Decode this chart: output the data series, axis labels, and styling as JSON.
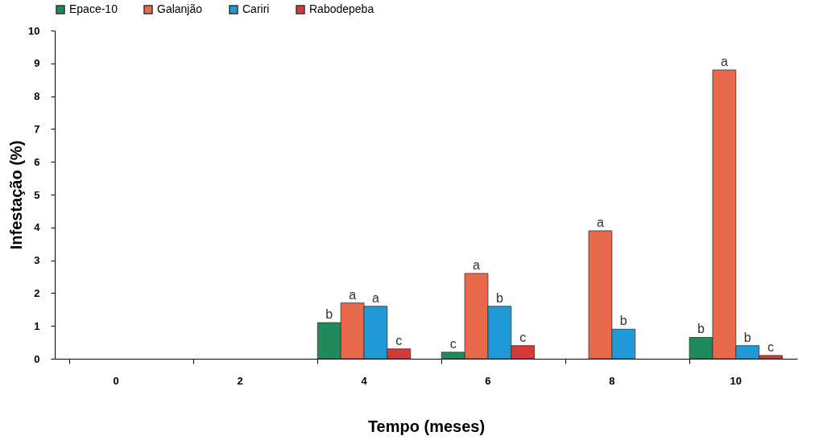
{
  "chart_data": {
    "type": "bar",
    "xlabel": "Tempo (meses)",
    "ylabel": "Infestação (%)",
    "categories": [
      "0",
      "2",
      "4",
      "6",
      "8",
      "10"
    ],
    "series": [
      {
        "name": "Epace-10",
        "color": "#1f8a5a",
        "values": [
          0,
          0,
          1.1,
          0.2,
          0,
          0.65
        ]
      },
      {
        "name": "Galanjão",
        "color": "#e8694a",
        "values": [
          0,
          0,
          1.7,
          2.6,
          3.9,
          8.8
        ]
      },
      {
        "name": "Cariri",
        "color": "#1f9ad6",
        "values": [
          0,
          0,
          1.6,
          1.6,
          0.9,
          0.4
        ]
      },
      {
        "name": "Rabodepeba",
        "color": "#d43a3a",
        "values": [
          0,
          0,
          0.3,
          0.4,
          0,
          0.1
        ]
      }
    ],
    "ylim": [
      0,
      10
    ],
    "yticks": [
      0,
      1,
      2,
      3,
      4,
      5,
      6,
      7,
      8,
      9,
      10
    ],
    "grid": false,
    "legend": "top",
    "annotations": [
      {
        "text": "b",
        "x": "4",
        "y": 1.1
      },
      {
        "text": "a",
        "x": "4",
        "y": 1.7
      },
      {
        "text": "a",
        "x": "4",
        "y": 1.6
      },
      {
        "text": "c",
        "x": "4",
        "y": 0.3
      },
      {
        "text": "c",
        "x": "6",
        "y": 0.2
      },
      {
        "text": "a",
        "x": "6",
        "y": 2.6
      },
      {
        "text": "b",
        "x": "6",
        "y": 1.6
      },
      {
        "text": "c",
        "x": "6",
        "y": 0.4
      },
      {
        "text": "a",
        "x": "8",
        "y": 3.9
      },
      {
        "text": "b",
        "x": "8",
        "y": 0.9
      },
      {
        "text": "b",
        "x": "10",
        "y": 0.65
      },
      {
        "text": "a",
        "x": "10",
        "y": 8.8
      },
      {
        "text": "b",
        "x": "10",
        "y": 0.4
      },
      {
        "text": "c",
        "x": "10",
        "y": 0.1
      }
    ]
  }
}
